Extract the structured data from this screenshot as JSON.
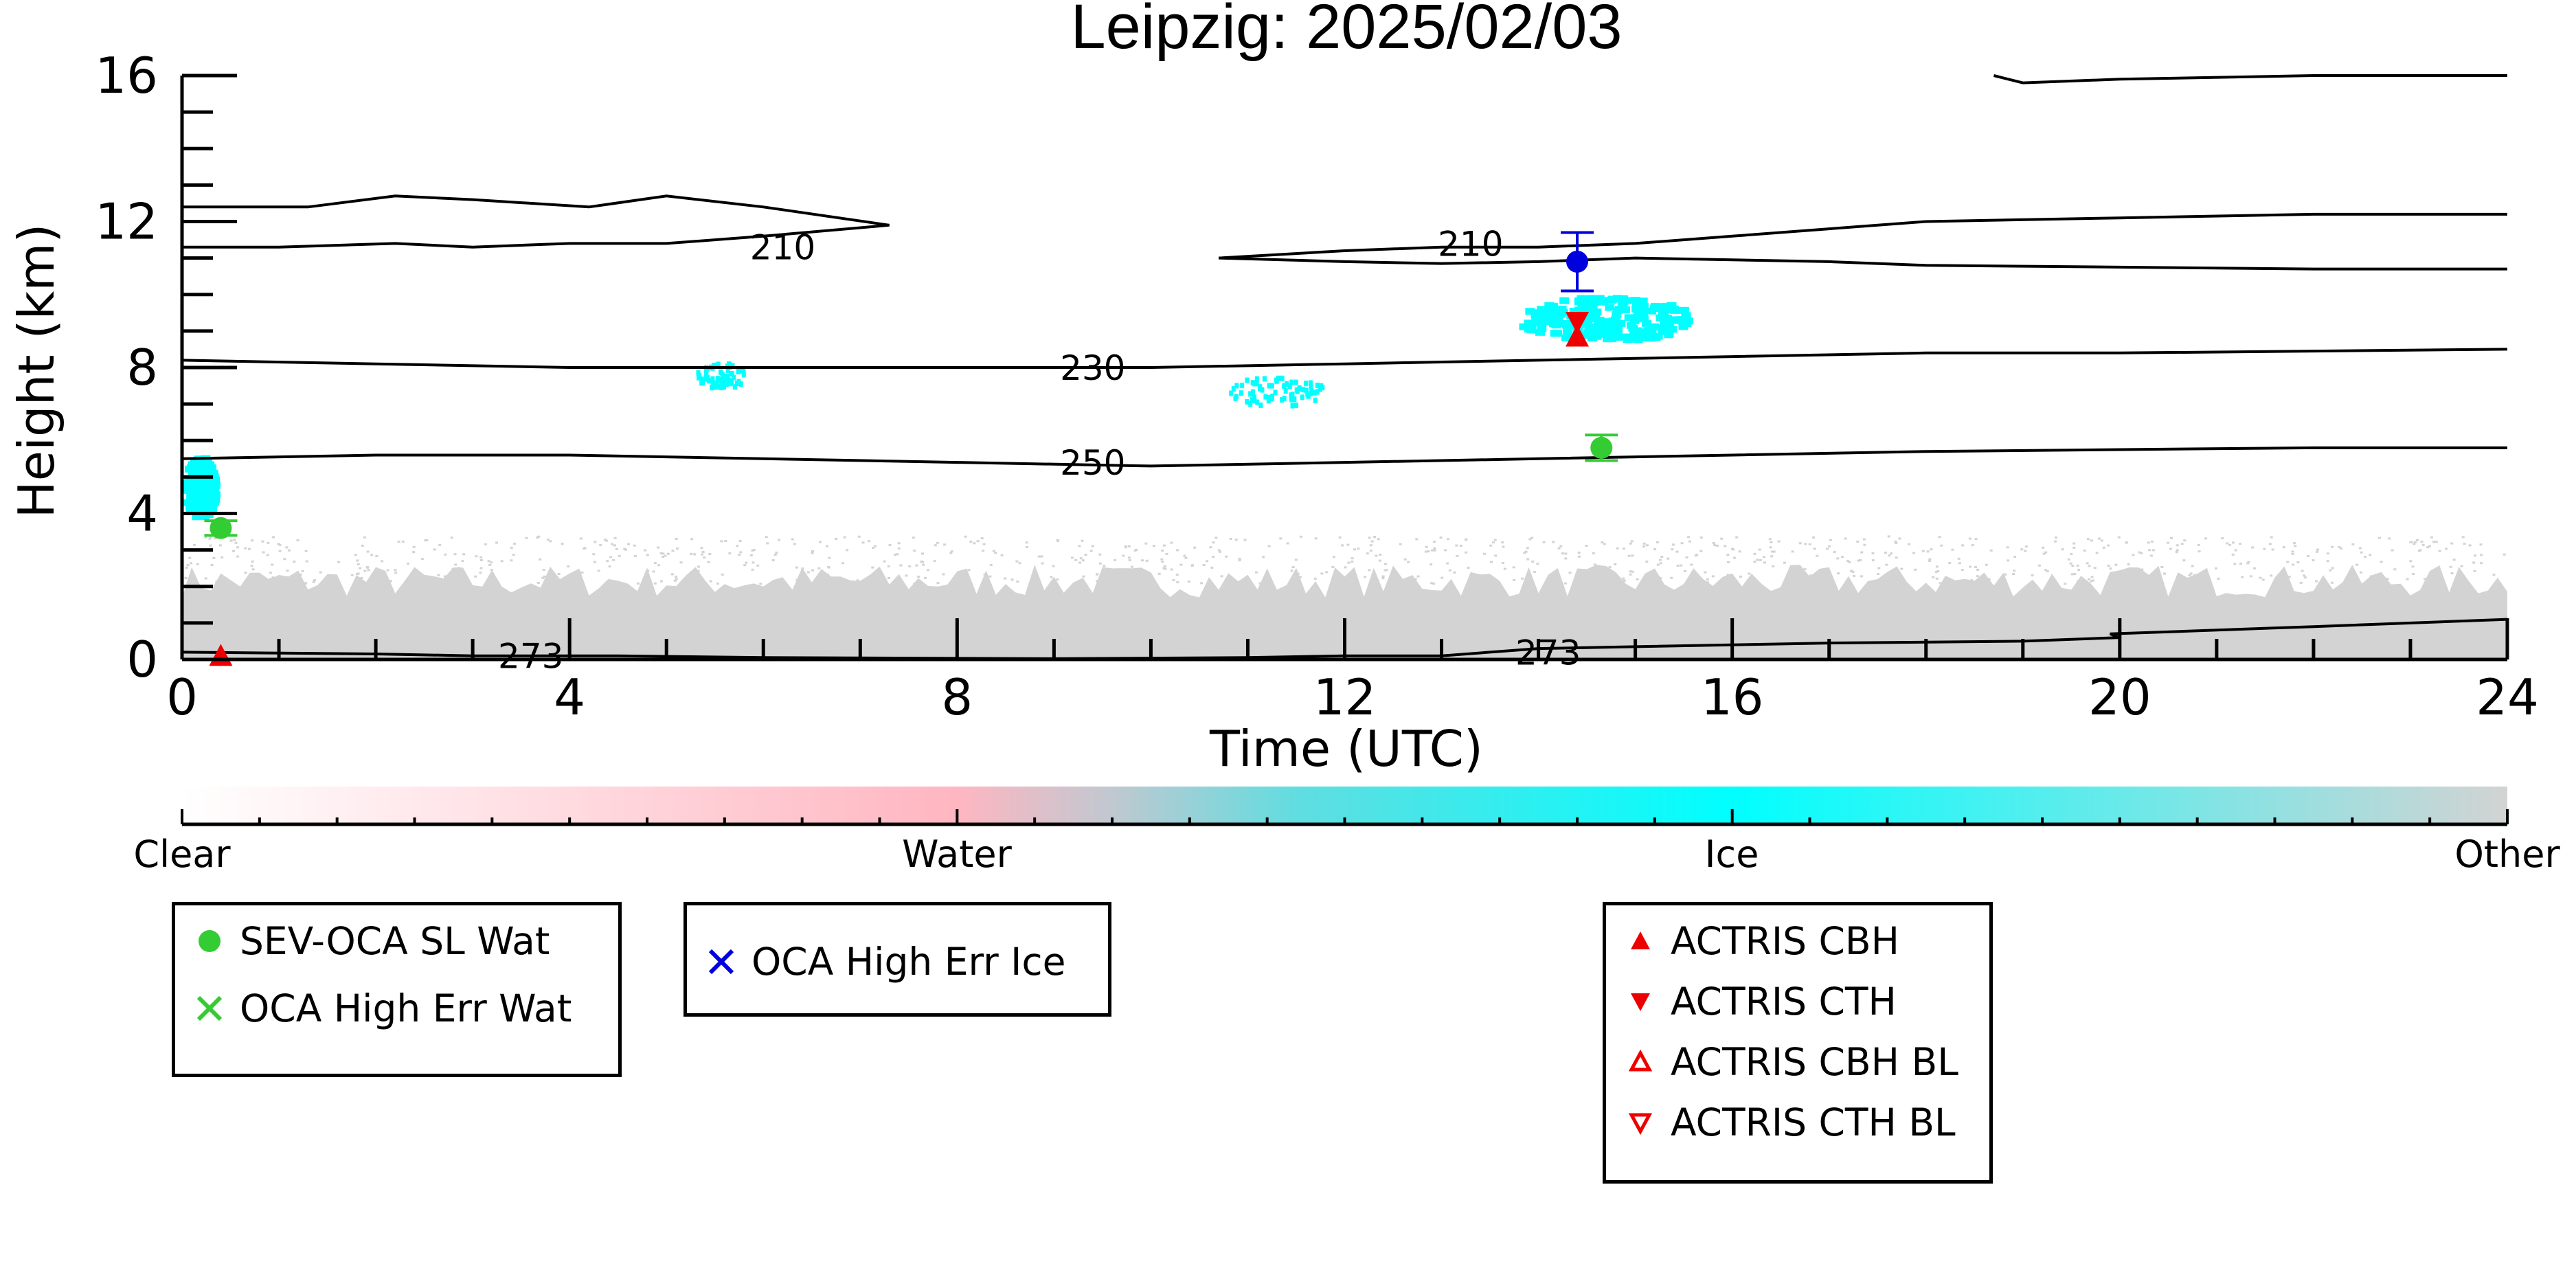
{
  "chart_data": {
    "type": "heatmap",
    "title": "Leipzig: 2025/02/03",
    "xlabel": "Time (UTC)",
    "ylabel": "Height (km)",
    "xlim": [
      0,
      24
    ],
    "ylim": [
      0,
      16
    ],
    "x_ticks": [
      "0",
      "4",
      "8",
      "12",
      "16",
      "20",
      "24"
    ],
    "y_ticks": [
      "0",
      "4",
      "8",
      "12",
      "16"
    ],
    "colorbar": {
      "labels": [
        "Clear",
        "Water",
        "Ice",
        "Other"
      ],
      "colors": [
        "#ffffff",
        "#ffb6c1",
        "#00ffff",
        "#d3d3d3"
      ]
    },
    "classification_regions": [
      {
        "class": "Other",
        "color": "#d3d3d3",
        "x": [
          0,
          24
        ],
        "y_base": 0,
        "y_top_approx": 2.3
      },
      {
        "class": "Ice",
        "color": "#00ffff",
        "x": [
          0,
          0.3
        ],
        "y": [
          4.0,
          5.6
        ]
      },
      {
        "class": "Ice",
        "color": "#00ffff",
        "x": [
          5.3,
          5.8
        ],
        "y": [
          7.5,
          8.2
        ]
      },
      {
        "class": "Ice",
        "color": "#00ffff",
        "x": [
          10.8,
          11.8
        ],
        "y": [
          7.0,
          7.8
        ]
      },
      {
        "class": "Ice",
        "color": "#00ffff",
        "x": [
          13.8,
          15.5
        ],
        "y": [
          8.8,
          10.0
        ]
      }
    ],
    "contours": [
      {
        "label": "210",
        "x": [
          0,
          1.3,
          2.2,
          3,
          4.2,
          5,
          6,
          7.3,
          6,
          5,
          4,
          3,
          2.2,
          1,
          0
        ],
        "y": [
          12.4,
          12.4,
          12.7,
          12.6,
          12.4,
          12.7,
          12.4,
          11.9,
          11.6,
          11.4,
          11.4,
          11.3,
          11.4,
          11.3,
          11.3
        ]
      },
      {
        "label": "210",
        "x": [
          10.7,
          12,
          13,
          14,
          15,
          16,
          17,
          18,
          20,
          22,
          24
        ],
        "y": [
          11.0,
          11.2,
          11.3,
          11.3,
          11.4,
          11.6,
          11.8,
          12.0,
          12.1,
          12.2,
          12.2
        ]
      },
      {
        "label": "210",
        "x": [
          10.7,
          12,
          13,
          14,
          15,
          16,
          17,
          18,
          20,
          22,
          24
        ],
        "y": [
          11.0,
          10.9,
          10.85,
          10.9,
          11.0,
          10.95,
          10.9,
          10.8,
          10.75,
          10.7,
          10.7
        ]
      },
      {
        "label": "230",
        "x": [
          0,
          2,
          4,
          6,
          8,
          10,
          12,
          14,
          16,
          18,
          20,
          22,
          24
        ],
        "y": [
          8.2,
          8.1,
          8.0,
          8.0,
          8.0,
          8.0,
          8.1,
          8.2,
          8.3,
          8.4,
          8.4,
          8.45,
          8.5
        ]
      },
      {
        "label": "250",
        "x": [
          0,
          2,
          4,
          6,
          8,
          10,
          12,
          14,
          16,
          18,
          20,
          22,
          24
        ],
        "y": [
          5.5,
          5.6,
          5.6,
          5.5,
          5.4,
          5.3,
          5.4,
          5.5,
          5.6,
          5.7,
          5.75,
          5.8,
          5.8
        ]
      },
      {
        "label": "273",
        "x": [
          0,
          2,
          3,
          4.5,
          6,
          9,
          11,
          12,
          13,
          14,
          15,
          17,
          19,
          20,
          19.9,
          22,
          24
        ],
        "y": [
          0.2,
          0.15,
          0.1,
          0.1,
          0.05,
          0.02,
          0.05,
          0.1,
          0.1,
          0.3,
          0.35,
          0.45,
          0.5,
          0.6,
          0.7,
          0.9,
          1.1
        ]
      },
      {
        "label": "",
        "x": [
          18.7,
          19,
          20,
          22,
          24
        ],
        "y": [
          16.0,
          15.8,
          15.9,
          16.0,
          16.0
        ]
      }
    ],
    "contour_labels": [
      {
        "text": "210",
        "x": 6.2,
        "y": 11.3
      },
      {
        "text": "210",
        "x": 13.3,
        "y": 11.4
      },
      {
        "text": "230",
        "x": 9.4,
        "y": 8.0
      },
      {
        "text": "250",
        "x": 9.4,
        "y": 5.4
      },
      {
        "text": "273",
        "x": 3.6,
        "y": 0.1
      },
      {
        "text": "273",
        "x": 14.1,
        "y": 0.2
      }
    ],
    "points": [
      {
        "series": "SEV-OCA SL Wat",
        "x": 0.4,
        "y": 3.6,
        "err": 0.2
      },
      {
        "series": "SEV-OCA SL Wat",
        "x": 14.65,
        "y": 5.8,
        "err": 0.35
      },
      {
        "series": "OCA High Err Ice",
        "x": 14.4,
        "y": 10.9,
        "err": 0.8
      },
      {
        "series": "ACTRIS CBH",
        "x": 14.4,
        "y": 8.8
      },
      {
        "series": "ACTRIS CTH",
        "x": 14.4,
        "y": 9.3
      },
      {
        "series": "ACTRIS CBH",
        "x": 0.4,
        "y": 0.05
      }
    ],
    "legends": [
      {
        "entries": [
          {
            "label": "SEV-OCA SL Wat",
            "marker": "filled-circle",
            "color": "#33cc33"
          },
          {
            "label": "OCA High Err Wat",
            "marker": "x",
            "color": "#33cc33"
          }
        ]
      },
      {
        "entries": [
          {
            "label": "OCA High Err Ice",
            "marker": "x",
            "color": "#0000dd"
          }
        ]
      },
      {
        "entries": [
          {
            "label": "ACTRIS CBH",
            "marker": "triangle-up-filled",
            "color": "#ee0000"
          },
          {
            "label": "ACTRIS CTH",
            "marker": "triangle-down-filled",
            "color": "#ee0000"
          },
          {
            "label": "ACTRIS CBH BL",
            "marker": "triangle-up-open",
            "color": "#ee0000"
          },
          {
            "label": "ACTRIS CTH BL",
            "marker": "triangle-down-open",
            "color": "#ee0000"
          }
        ]
      }
    ]
  }
}
